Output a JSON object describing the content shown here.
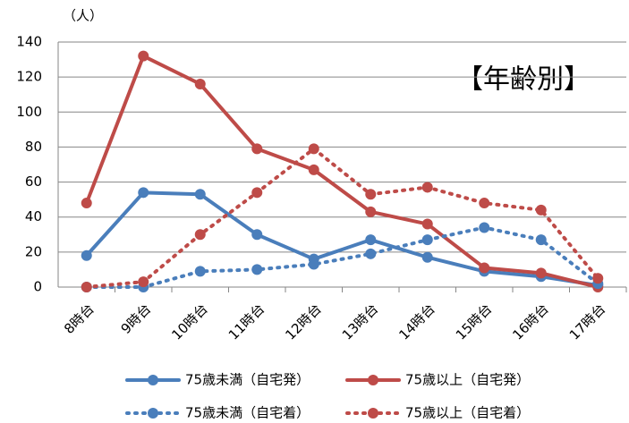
{
  "chart_data": {
    "type": "line",
    "y_label": "（人）",
    "annotation": "【年齢別】",
    "categories": [
      "8時台",
      "9時台",
      "10時台",
      "11時台",
      "12時台",
      "13時台",
      "14時台",
      "15時台",
      "16時台",
      "17時台"
    ],
    "series": [
      {
        "name": "75歳未満（自宅発）",
        "color": "#4a7ebb",
        "line_style": "solid",
        "values": [
          18,
          54,
          53,
          30,
          16,
          27,
          17,
          9,
          6,
          1
        ]
      },
      {
        "name": "75歳以上（自宅発）",
        "color": "#be4b48",
        "line_style": "solid",
        "values": [
          48,
          132,
          116,
          79,
          67,
          43,
          36,
          11,
          8,
          0
        ]
      },
      {
        "name": "75歳未満（自宅着）",
        "color": "#4a7ebb",
        "line_style": "dotted",
        "values": [
          0,
          0,
          9,
          10,
          13,
          19,
          27,
          34,
          27,
          2
        ]
      },
      {
        "name": "75歳以上（自宅着）",
        "color": "#be4b48",
        "line_style": "dotted",
        "values": [
          0,
          3,
          30,
          54,
          79,
          53,
          57,
          48,
          44,
          5
        ]
      }
    ],
    "ylim": [
      0,
      140
    ],
    "yticks": [
      0,
      20,
      40,
      60,
      80,
      100,
      120,
      140
    ],
    "grid": true
  }
}
